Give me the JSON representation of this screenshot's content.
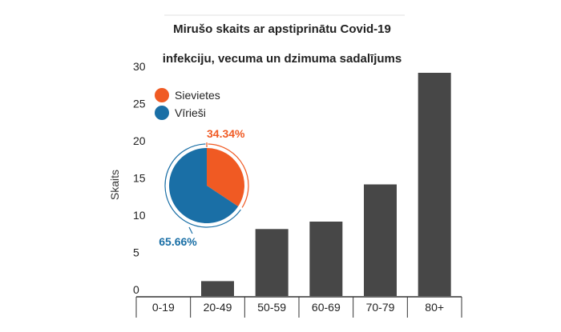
{
  "chart_data": {
    "type": "bar",
    "title_line1": "Mirušo skaits ar apstiprinātu Covid-19",
    "title_line2": "infekciju, vecuma un dzimuma sadalījums",
    "ylabel": "Skaits",
    "ylim": [
      0,
      30
    ],
    "yticks": [
      "0",
      "5",
      "10",
      "15",
      "20",
      "25",
      "30"
    ],
    "grid": false,
    "categories": [
      "0-19",
      "20-49",
      "50-59",
      "60-69",
      "70-79",
      "80+"
    ],
    "values": [
      0,
      2,
      9,
      10,
      15,
      30
    ],
    "bar_color": "#474747",
    "inset_pie": {
      "type": "pie",
      "legend_position": "top-left",
      "slices": [
        {
          "name": "Sievietes",
          "value": 34.34,
          "label": "34.34%",
          "color": "#f05a23"
        },
        {
          "name": "Vīrieši",
          "value": 65.66,
          "label": "65.66%",
          "color": "#1a6fa6"
        }
      ]
    }
  }
}
